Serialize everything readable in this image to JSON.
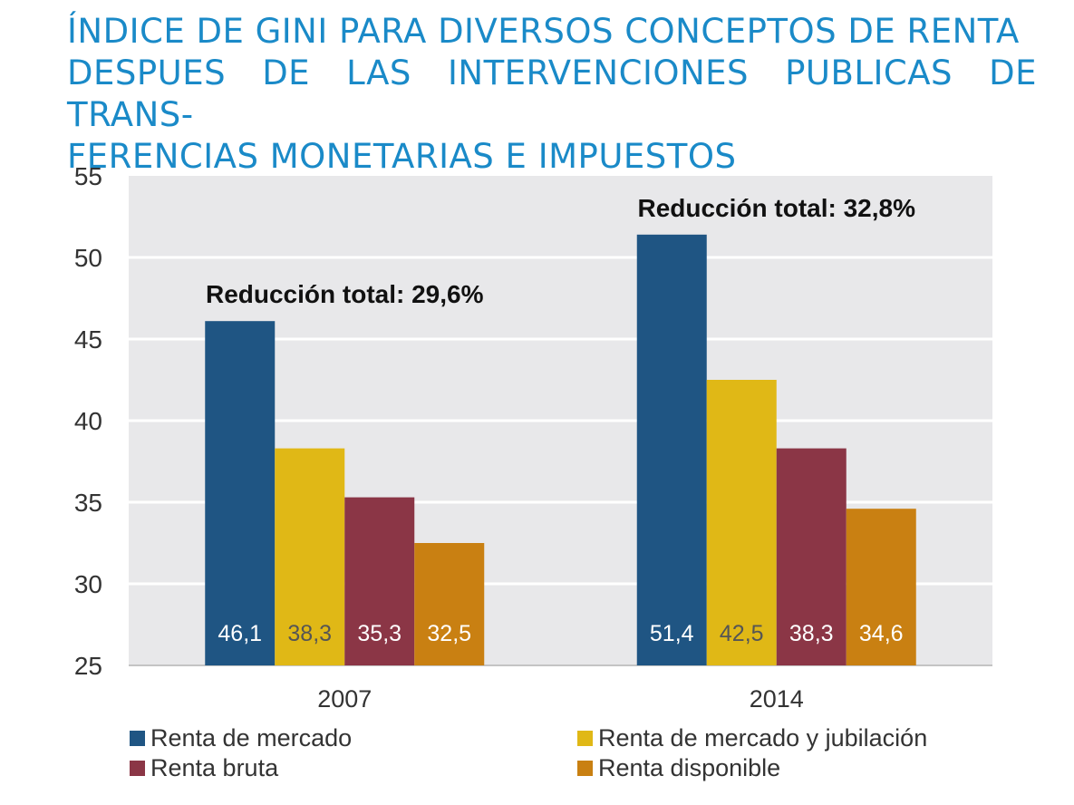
{
  "title_lines": [
    "ÍNDICE DE GINI PARA DIVERSOS CONCEPTOS DE RENTA",
    "DESPUES DE LAS INTERVENCIONES PUBLICAS DE TRANS-",
    "FERENCIAS MONETARIAS E IMPUESTOS"
  ],
  "chart_data": {
    "type": "bar",
    "title": "ÍNDICE DE GINI PARA DIVERSOS CONCEPTOS DE RENTA DESPUES DE LAS INTERVENCIONES PUBLICAS DE TRANS-FERENCIAS MONETARIAS E IMPUESTOS",
    "xlabel": "",
    "ylabel": "",
    "ylim": [
      25,
      55
    ],
    "yticks": [
      25,
      30,
      35,
      40,
      45,
      50,
      55
    ],
    "grid": true,
    "plot_background": "#e8e8ea",
    "categories": [
      "2007",
      "2014"
    ],
    "series": [
      {
        "name": "Renta de mercado",
        "values": [
          46.1,
          51.4
        ],
        "labels": [
          "46,1",
          "51,4"
        ],
        "color": "#1f5583",
        "label_color": "#ffffff"
      },
      {
        "name": "Renta de mercado y jubilación",
        "values": [
          38.3,
          42.5
        ],
        "labels": [
          "38,3",
          "42,5"
        ],
        "color": "#e0b816",
        "label_color": "#555555"
      },
      {
        "name": "Renta bruta",
        "values": [
          35.3,
          38.3
        ],
        "labels": [
          "35,3",
          "38,3"
        ],
        "color": "#8b3646",
        "label_color": "#ffffff"
      },
      {
        "name": "Renta disponible",
        "values": [
          32.5,
          34.6
        ],
        "labels": [
          "32,5",
          "34,6"
        ],
        "color": "#c98012",
        "label_color": "#ffffff"
      }
    ],
    "annotations": [
      "Reducción total: 29,6%",
      "Reducción total: 32,8%"
    ],
    "legend_position": "bottom"
  }
}
